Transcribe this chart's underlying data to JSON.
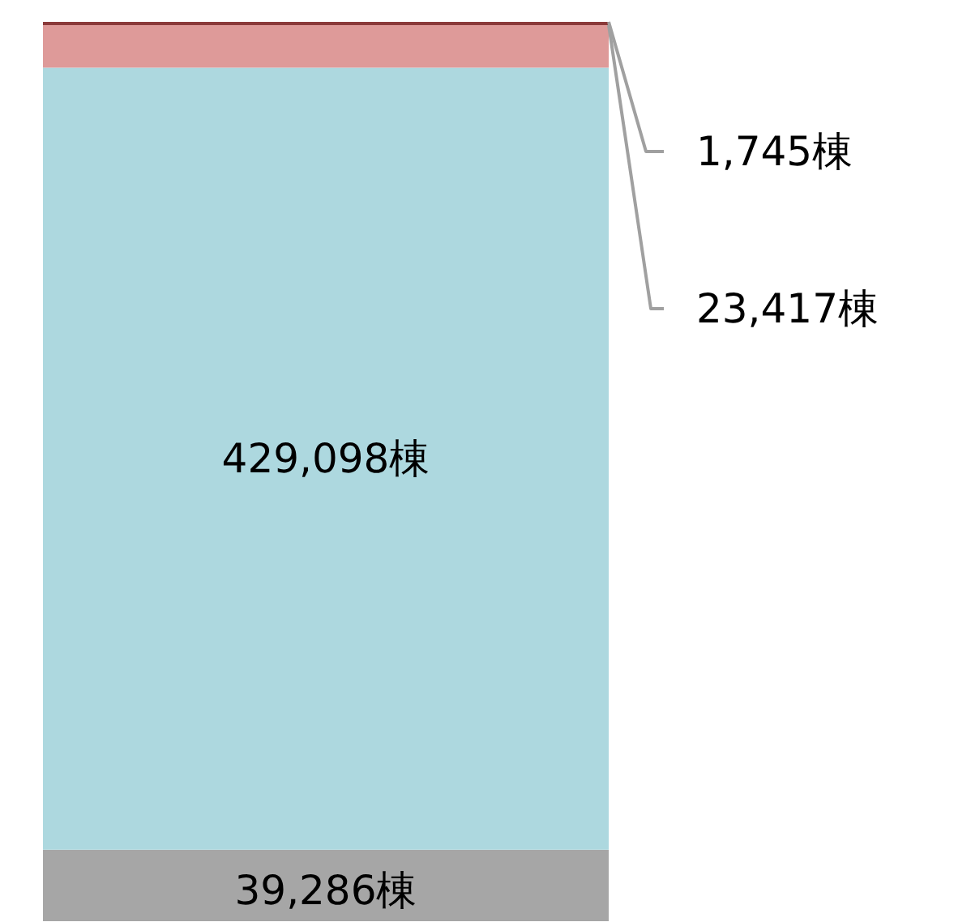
{
  "chart_data": {
    "type": "bar",
    "stacked": true,
    "categories": [
      null
    ],
    "tick_labels": false,
    "grid": false,
    "series": [
      {
        "color": "#a6a6a6",
        "values": [
          39286
        ],
        "value_labels": [
          "39,286棟"
        ]
      },
      {
        "color": "#add8df",
        "values": [
          429098
        ],
        "value_labels": [
          "429,098棟"
        ]
      },
      {
        "color": "#de9a99",
        "values": [
          23417
        ],
        "value_labels": [
          "23,417棟"
        ]
      },
      {
        "color": "#8b3a3a",
        "values": [
          1745
        ],
        "value_labels": [
          "1,745棟"
        ]
      }
    ]
  }
}
